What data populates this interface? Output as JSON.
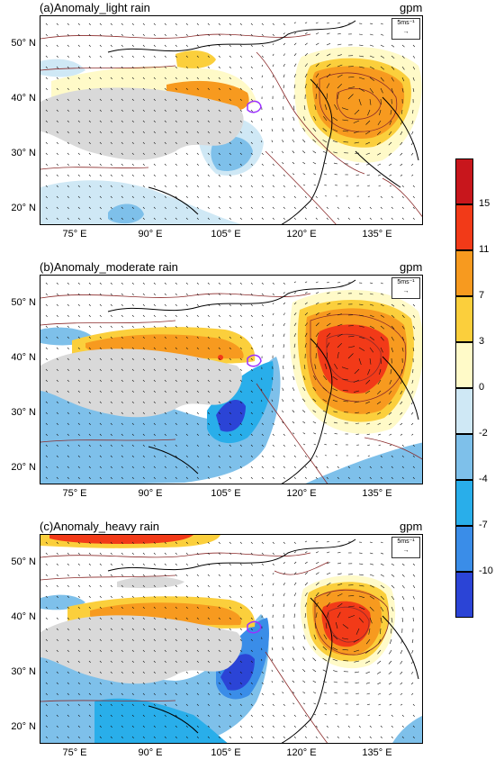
{
  "panels": [
    {
      "id": "a",
      "title": "(a)Anomaly_light rain",
      "unit": "gpm"
    },
    {
      "id": "b",
      "title": "(b)Anomaly_moderate rain",
      "unit": "gpm"
    },
    {
      "id": "c",
      "title": "(c)Anomaly_heavy rain",
      "unit": "gpm"
    }
  ],
  "lat_labels": [
    "50° N",
    "40° N",
    "30° N",
    "20° N"
  ],
  "lon_labels": [
    "75° E",
    "90° E",
    "105° E",
    "120° E",
    "135° E"
  ],
  "vector_reference": "5ms⁻¹",
  "colorbar": {
    "labels": [
      "15",
      "11",
      "7",
      "3",
      "0",
      "-2",
      "-4",
      "-7",
      "-10"
    ],
    "colors": [
      "#c8161c",
      "#f23a18",
      "#f79a1f",
      "#fbcf3c",
      "#fffac8",
      "#cfe8f5",
      "#7ec0ea",
      "#29aeea",
      "#3a8de8",
      "#2b44d6"
    ]
  },
  "colors": {
    "plateau": "#d9d9d9",
    "contour": "#8b2a2a",
    "coast": "#000000",
    "basin": "#9b30ff"
  }
}
